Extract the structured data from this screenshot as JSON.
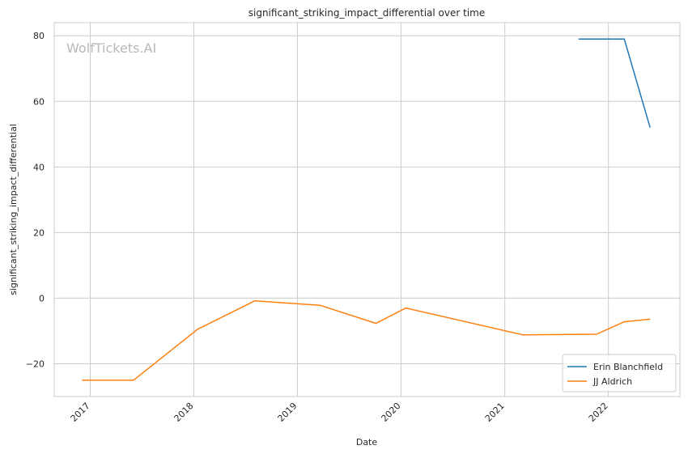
{
  "chart_data": {
    "type": "line",
    "title": "significant_striking_impact_differential over time",
    "xlabel": "Date",
    "ylabel": "significant_striking_impact_differential",
    "watermark": "WolfTickets.AI",
    "x_ticks": [
      "2017",
      "2018",
      "2019",
      "2020",
      "2021",
      "2022"
    ],
    "y_ticks": [
      -20,
      0,
      20,
      40,
      60,
      80
    ],
    "xlim": [
      "2016-08-27",
      "2022-09-10"
    ],
    "ylim": [
      -30,
      84
    ],
    "grid": true,
    "legend_position": "lower-right",
    "series": [
      {
        "name": "Erin Blanchfield",
        "color": "#1f77b4",
        "points": [
          {
            "x": "2021-09-18",
            "y": 79
          },
          {
            "x": "2022-02-26",
            "y": 79
          },
          {
            "x": "2022-05-28",
            "y": 52
          }
        ]
      },
      {
        "name": "JJ Aldrich",
        "color": "#ff7f0e",
        "points": [
          {
            "x": "2016-12-03",
            "y": -25
          },
          {
            "x": "2017-06-03",
            "y": -25
          },
          {
            "x": "2018-01-14",
            "y": -9.5
          },
          {
            "x": "2018-08-04",
            "y": -0.8
          },
          {
            "x": "2019-03-23",
            "y": -2.2
          },
          {
            "x": "2019-10-05",
            "y": -7.7
          },
          {
            "x": "2020-01-18",
            "y": -3
          },
          {
            "x": "2021-03-06",
            "y": -11.2
          },
          {
            "x": "2021-11-20",
            "y": -11
          },
          {
            "x": "2022-02-26",
            "y": -7.2
          },
          {
            "x": "2022-05-28",
            "y": -6.4
          }
        ]
      }
    ]
  }
}
